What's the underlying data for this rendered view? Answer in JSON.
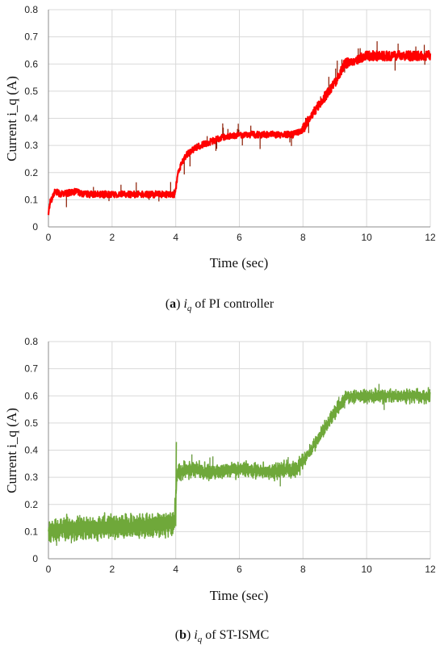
{
  "chart_data": [
    {
      "type": "line",
      "caption_letter": "a",
      "caption_var": "i",
      "caption_sub": "q",
      "caption_text": " of PI controller",
      "xlabel": "Time (sec)",
      "ylabel": "Current i_q (A)",
      "xlim": [
        0,
        12
      ],
      "ylim": [
        0,
        0.8
      ],
      "xticks": [
        "0",
        "2",
        "4",
        "6",
        "8",
        "10",
        "12"
      ],
      "yticks": [
        "0",
        "0.1",
        "0.2",
        "0.3",
        "0.4",
        "0.5",
        "0.6",
        "0.7",
        "0.8"
      ],
      "grid": true,
      "line_color": "#ff0000",
      "noise_color": "#8b1a00",
      "series": [
        {
          "x": [
            0,
            0.05,
            0.2,
            0.4,
            0.8,
            1.2,
            2,
            3,
            3.95,
            4.0,
            4.1,
            4.3,
            4.6,
            5.0,
            5.5,
            6,
            7,
            7.7,
            8.0,
            8.5,
            9.0,
            9.3,
            10,
            11,
            12
          ],
          "values": [
            0.05,
            0.09,
            0.13,
            0.12,
            0.13,
            0.12,
            0.12,
            0.12,
            0.12,
            0.14,
            0.21,
            0.26,
            0.29,
            0.31,
            0.33,
            0.34,
            0.34,
            0.34,
            0.36,
            0.45,
            0.53,
            0.6,
            0.63,
            0.63,
            0.63
          ]
        }
      ]
    },
    {
      "type": "line",
      "caption_letter": "b",
      "caption_var": "i",
      "caption_sub": "q",
      "caption_text": " of ST-ISMC",
      "xlabel": "Time (sec)",
      "ylabel": "Current i_q (A)",
      "xlim": [
        0,
        12
      ],
      "ylim": [
        0,
        0.8
      ],
      "xticks": [
        "0",
        "2",
        "4",
        "6",
        "8",
        "10",
        "12"
      ],
      "yticks": [
        "0",
        "0.1",
        "0.2",
        "0.3",
        "0.4",
        "0.5",
        "0.6",
        "0.7",
        "0.8"
      ],
      "grid": true,
      "line_color": "#6fa83a",
      "noise_color": "#5a8f2c",
      "series": [
        {
          "x": [
            0,
            0.5,
            1,
            2,
            3,
            3.95,
            4.05,
            4.5,
            5,
            6,
            7,
            7.8,
            8.2,
            8.6,
            9.0,
            9.4,
            10,
            11,
            12
          ],
          "values": [
            0.1,
            0.11,
            0.11,
            0.12,
            0.12,
            0.13,
            0.32,
            0.33,
            0.32,
            0.33,
            0.32,
            0.33,
            0.39,
            0.47,
            0.54,
            0.6,
            0.6,
            0.6,
            0.6
          ]
        }
      ]
    }
  ]
}
